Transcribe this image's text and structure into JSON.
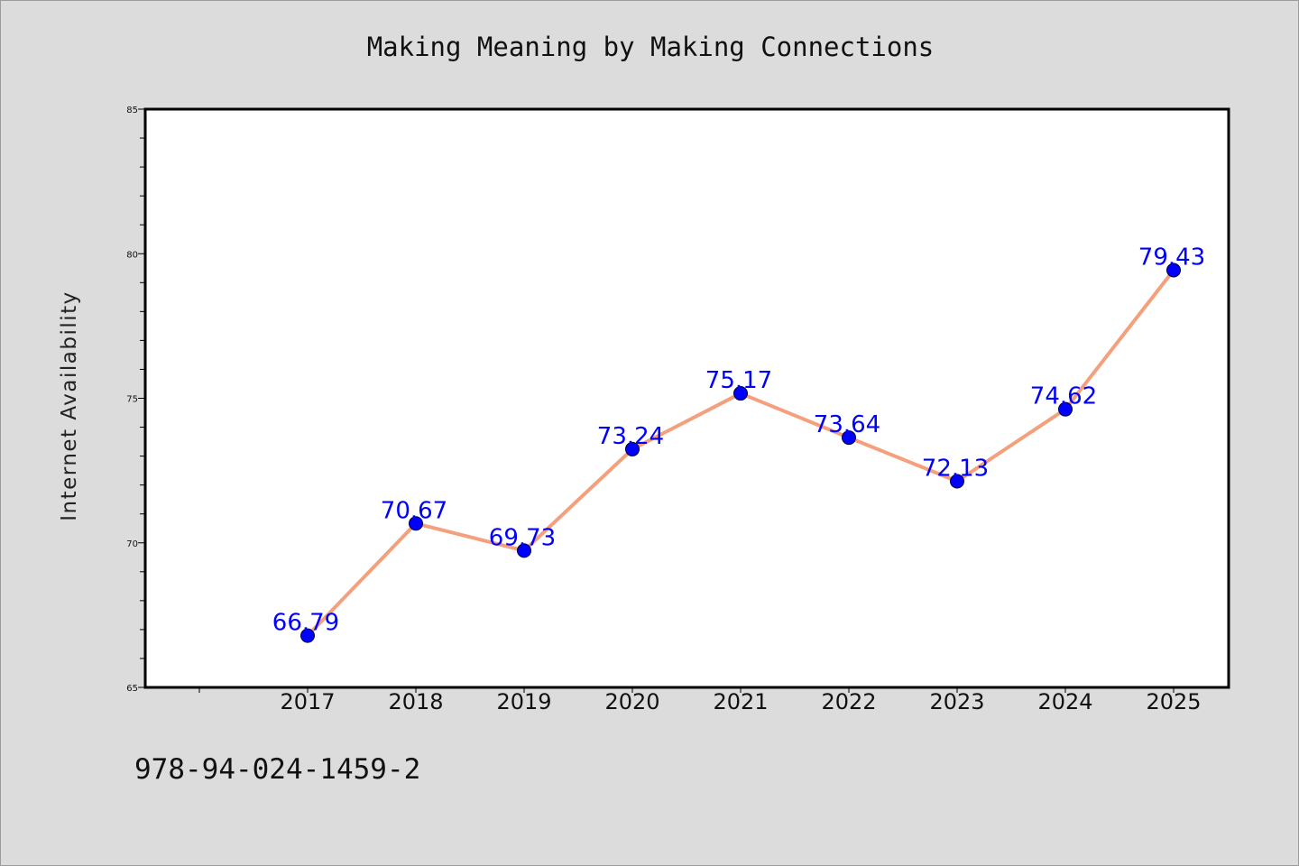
{
  "chart_data": {
    "type": "line",
    "title": "Making Meaning by Making Connections",
    "xlabel": "",
    "ylabel": "Internet Availability",
    "categories": [
      "2017",
      "2018",
      "2019",
      "2020",
      "2021",
      "2022",
      "2023",
      "2024",
      "2025"
    ],
    "series": [
      {
        "values": [
          66.79,
          70.67,
          69.73,
          73.24,
          75.17,
          73.64,
          72.13,
          74.62,
          79.43
        ],
        "data_labels": [
          "66.79",
          "70.67",
          "69.73",
          "73.24",
          "75.17",
          "73.64",
          "72.13",
          "74.62",
          "79.43"
        ]
      }
    ],
    "ylim": [
      65,
      85
    ],
    "y_ticks": [
      65,
      70,
      75,
      80,
      85
    ],
    "grid": false,
    "legend": "none",
    "colors": {
      "line": "#f4a07c",
      "marker": "#0000ff",
      "data_label": "#0000ff",
      "plot_background": "#ffffff",
      "page_background": "#dcdcdc"
    }
  },
  "footer": {
    "code": "978-94-024-1459-2"
  }
}
